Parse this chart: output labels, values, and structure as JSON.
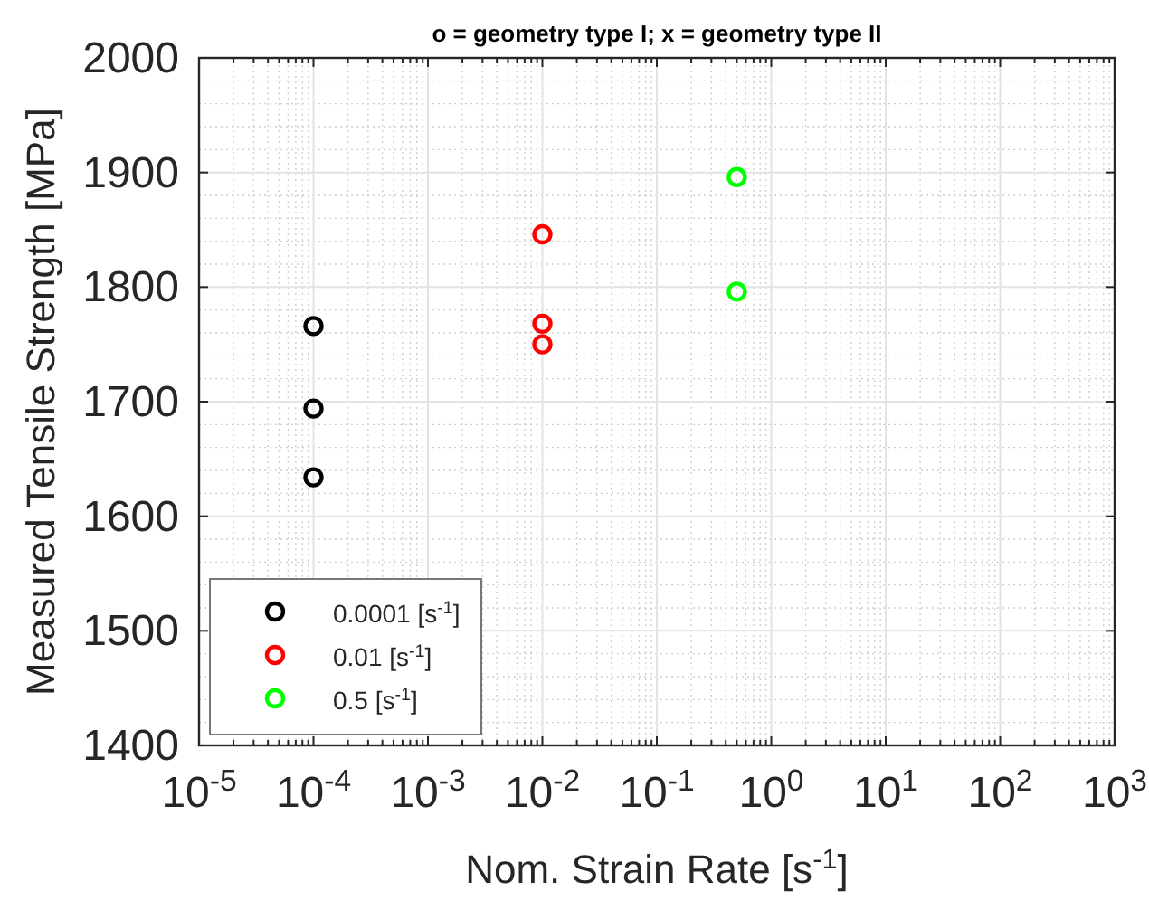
{
  "chart_data": {
    "type": "scatter",
    "title": "o = geometry type I; x = geometry type II",
    "xlabel": "Nom. Strain Rate [s$^{-1}$]",
    "ylabel": "Measured Tensile Strength [MPa]",
    "log": "x",
    "xlim": [
      1e-05,
      1000
    ],
    "ylim": [
      1400,
      2000
    ],
    "xticks": [
      {
        "value": 1e-05,
        "label": "10$^{-5}$"
      },
      {
        "value": 0.0001,
        "label": "10$^{-4}$"
      },
      {
        "value": 0.001,
        "label": "10$^{-3}$"
      },
      {
        "value": 0.01,
        "label": "10$^{-2}$"
      },
      {
        "value": 0.1,
        "label": "10$^{-1}$"
      },
      {
        "value": 1,
        "label": "10$^{0}$"
      },
      {
        "value": 10,
        "label": "10$^{1}$"
      },
      {
        "value": 100,
        "label": "10$^{2}$"
      },
      {
        "value": 1000,
        "label": "10$^{3}$"
      }
    ],
    "yticks": [
      1400,
      1500,
      1600,
      1700,
      1800,
      1900,
      2000
    ],
    "grid": true,
    "legend": "bottom left",
    "marker": "circle",
    "series": [
      {
        "name": "0.0001 [s$^{-1}$]",
        "color": "#000000",
        "x": [
          0.0001,
          0.0001,
          0.0001
        ],
        "values": [
          1766,
          1694,
          1634
        ]
      },
      {
        "name": "0.01 [s$^{-1}$]",
        "color": "#ff0000",
        "x": [
          0.01,
          0.01,
          0.01
        ],
        "values": [
          1846,
          1768,
          1750
        ]
      },
      {
        "name": "0.5 [s$^{-1}$]",
        "color": "#00ff00",
        "x": [
          0.5,
          0.5
        ],
        "values": [
          1896,
          1796
        ]
      }
    ]
  }
}
